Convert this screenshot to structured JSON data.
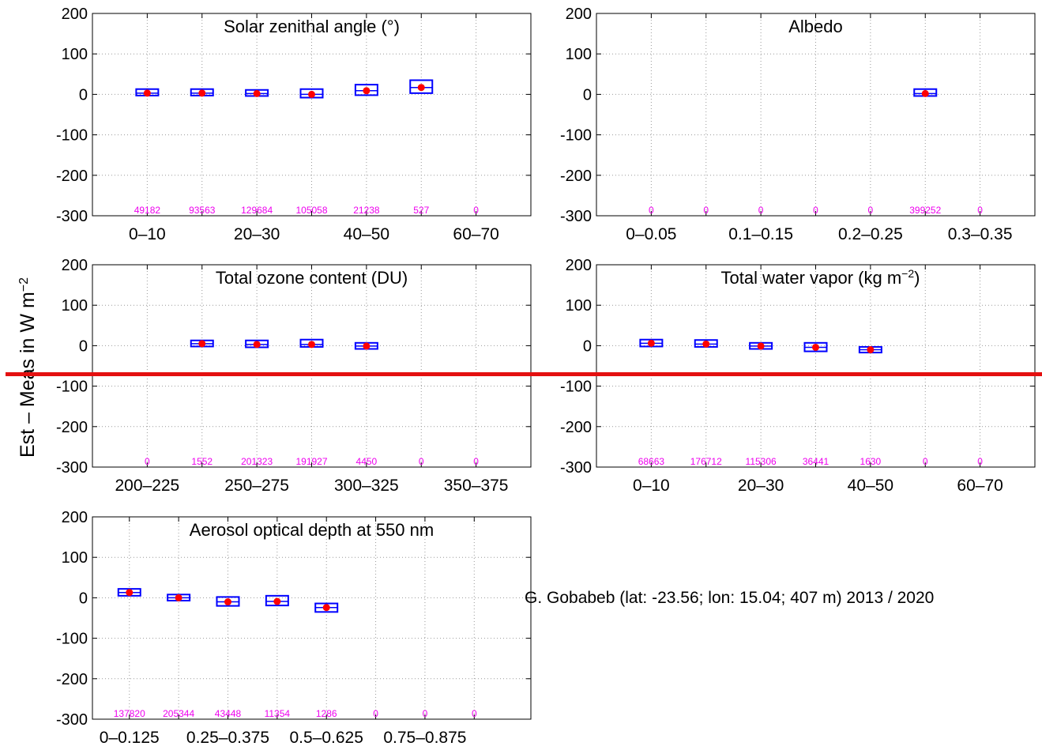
{
  "figure": {
    "ylabel": "Est – Meas in W m",
    "ylabel_sup": "−2",
    "annotation": "G. Gobabeb (lat: -23.56; lon: 15.04; 407 m) 2013 / 2020",
    "colors": {
      "box": "#0000ff",
      "mean": "#ff0000",
      "count": "#ee00ee",
      "refline": "#e41010"
    }
  },
  "chart_data": [
    {
      "type": "box",
      "title": "Solar zenithal angle (°)",
      "ylim": [
        -300,
        200
      ],
      "yticks": [
        -300,
        -200,
        -100,
        0,
        100,
        200
      ],
      "xtick_labels": [
        "0–10",
        "20–30",
        "40–50",
        "60–70"
      ],
      "bins": [
        {
          "q1": -3,
          "median": 3,
          "q3": 13,
          "mean": 3,
          "count": "49182"
        },
        {
          "q1": -3,
          "median": 3,
          "q3": 13,
          "mean": 3,
          "count": "93563"
        },
        {
          "q1": -4,
          "median": 2,
          "q3": 11,
          "mean": 2,
          "count": "129684"
        },
        {
          "q1": -8,
          "median": 0,
          "q3": 13,
          "mean": 0,
          "count": "105058"
        },
        {
          "q1": -2,
          "median": 9,
          "q3": 24,
          "mean": 9,
          "count": "21238"
        },
        {
          "q1": 3,
          "median": 17,
          "q3": 35,
          "mean": 17,
          "count": "527"
        },
        {
          "q1": null,
          "median": null,
          "q3": null,
          "mean": null,
          "count": "0"
        }
      ]
    },
    {
      "type": "box",
      "title": "Albedo",
      "ylim": [
        -300,
        200
      ],
      "yticks": [
        -300,
        -200,
        -100,
        0,
        100,
        200
      ],
      "xtick_labels": [
        "0–0.05",
        "0.1–0.15",
        "0.2–0.25",
        "0.3–0.35"
      ],
      "bins": [
        {
          "q1": null,
          "median": null,
          "q3": null,
          "mean": null,
          "count": "0"
        },
        {
          "q1": null,
          "median": null,
          "q3": null,
          "mean": null,
          "count": "0"
        },
        {
          "q1": null,
          "median": null,
          "q3": null,
          "mean": null,
          "count": "0"
        },
        {
          "q1": null,
          "median": null,
          "q3": null,
          "mean": null,
          "count": "0"
        },
        {
          "q1": null,
          "median": null,
          "q3": null,
          "mean": null,
          "count": "0"
        },
        {
          "q1": -4,
          "median": 2,
          "q3": 13,
          "mean": 2,
          "count": "399252"
        },
        {
          "q1": null,
          "median": null,
          "q3": null,
          "mean": null,
          "count": "0"
        }
      ]
    },
    {
      "type": "box",
      "title": "Total ozone content (DU)",
      "ylim": [
        -300,
        200
      ],
      "yticks": [
        -300,
        -200,
        -100,
        0,
        100,
        200
      ],
      "xtick_labels": [
        "200–225",
        "250–275",
        "300–325",
        "350–375"
      ],
      "bins": [
        {
          "q1": null,
          "median": null,
          "q3": null,
          "mean": null,
          "count": "0"
        },
        {
          "q1": -2,
          "median": 5,
          "q3": 13,
          "mean": 5,
          "count": "1552"
        },
        {
          "q1": -4,
          "median": 3,
          "q3": 13,
          "mean": 3,
          "count": "201323"
        },
        {
          "q1": -3,
          "median": 3,
          "q3": 15,
          "mean": 3,
          "count": "191927"
        },
        {
          "q1": -8,
          "median": -1,
          "q3": 7,
          "mean": -1,
          "count": "4450"
        },
        {
          "q1": null,
          "median": null,
          "q3": null,
          "mean": null,
          "count": "0"
        },
        {
          "q1": null,
          "median": null,
          "q3": null,
          "mean": null,
          "count": "0"
        }
      ]
    },
    {
      "type": "box",
      "title": "Total water vapor (kg m",
      "title_sup": "−2",
      "title_end": ")",
      "ylim": [
        -300,
        200
      ],
      "yticks": [
        -300,
        -200,
        -100,
        0,
        100,
        200
      ],
      "xtick_labels": [
        "0–10",
        "20–30",
        "40–50",
        "60–70"
      ],
      "bins": [
        {
          "q1": -2,
          "median": 6,
          "q3": 15,
          "mean": 6,
          "count": "68663"
        },
        {
          "q1": -3,
          "median": 4,
          "q3": 14,
          "mean": 4,
          "count": "176712"
        },
        {
          "q1": -8,
          "median": -1,
          "q3": 7,
          "mean": -1,
          "count": "115306"
        },
        {
          "q1": -14,
          "median": -4,
          "q3": 7,
          "mean": -4,
          "count": "36441"
        },
        {
          "q1": -17,
          "median": -10,
          "q3": -3,
          "mean": -10,
          "count": "1630"
        },
        {
          "q1": null,
          "median": null,
          "q3": null,
          "mean": null,
          "count": "0"
        },
        {
          "q1": null,
          "median": null,
          "q3": null,
          "mean": null,
          "count": "0"
        }
      ]
    },
    {
      "type": "box",
      "title": "Aerosol optical depth at 550 nm",
      "ylim": [
        -300,
        200
      ],
      "yticks": [
        -300,
        -200,
        -100,
        0,
        100,
        200
      ],
      "xtick_labels": [
        "0–0.125",
        "0.25–0.375",
        "0.5–0.625",
        "0.75–0.875"
      ],
      "bins": [
        {
          "q1": 5,
          "median": 13,
          "q3": 22,
          "mean": 13,
          "count": "137820"
        },
        {
          "q1": -7,
          "median": 0,
          "q3": 8,
          "mean": 0,
          "count": "205344"
        },
        {
          "q1": -20,
          "median": -10,
          "q3": 2,
          "mean": -10,
          "count": "43448"
        },
        {
          "q1": -19,
          "median": -9,
          "q3": 5,
          "mean": -9,
          "count": "11354"
        },
        {
          "q1": -35,
          "median": -24,
          "q3": -14,
          "mean": -24,
          "count": "1286"
        },
        {
          "q1": null,
          "median": null,
          "q3": null,
          "mean": null,
          "count": "0"
        },
        {
          "q1": null,
          "median": null,
          "q3": null,
          "mean": null,
          "count": "0"
        },
        {
          "q1": null,
          "median": null,
          "q3": null,
          "mean": null,
          "count": "0"
        }
      ]
    }
  ]
}
